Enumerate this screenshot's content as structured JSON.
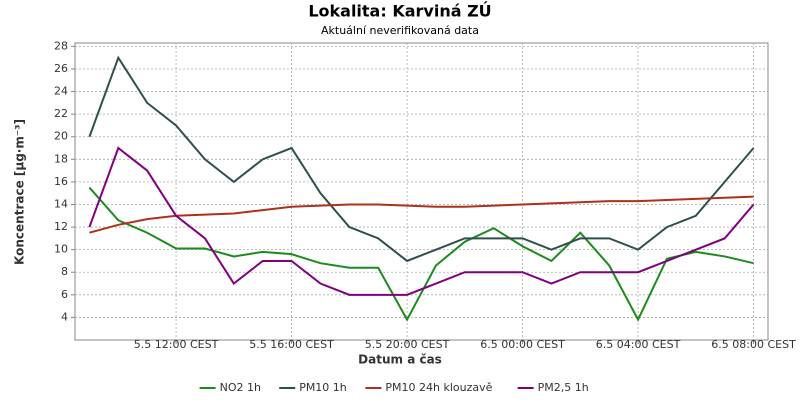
{
  "chart_data": {
    "type": "line",
    "title": "Lokalita: Karviná ZÚ",
    "subtitle": "Aktuální neverifikovaná data",
    "x_label": "Datum a čas",
    "y_label": "Koncentrace [µg·m⁻³]",
    "categories": [
      null,
      null,
      null,
      "5.5 12:00 CEST",
      null,
      null,
      null,
      "5.5 16:00 CEST",
      null,
      null,
      null,
      "5.5 20:00 CEST",
      null,
      null,
      null,
      "6.5 00:00 CEST",
      null,
      null,
      null,
      "6.5 04:00 CEST",
      null,
      null,
      null,
      "6.5 08:00 CEST"
    ],
    "ylim": [
      2,
      28.3
    ],
    "yticks": [
      4,
      6,
      8,
      10,
      12,
      14,
      16,
      18,
      20,
      22,
      24,
      26,
      28
    ],
    "grid": true,
    "legend": "bottom",
    "series": [
      {
        "name": "NO2 1h",
        "color": "#1b8c1b",
        "values": [
          15.5,
          12.6,
          11.5,
          10.1,
          10.1,
          9.4,
          9.8,
          9.6,
          8.8,
          8.4,
          8.4,
          3.8,
          8.6,
          10.7,
          11.9,
          10.3,
          9.0,
          11.5,
          8.6,
          3.8,
          9.2,
          9.8,
          9.4,
          8.8
        ]
      },
      {
        "name": "PM10 1h",
        "color": "#2f4f4f",
        "values": [
          20,
          27,
          23,
          21,
          18,
          16,
          18,
          19,
          15,
          12,
          11,
          9,
          10,
          11,
          11,
          11,
          10,
          11,
          11,
          10,
          12,
          13,
          16,
          19
        ]
      },
      {
        "name": "PM10 24h klouzavě",
        "color": "#b0301e",
        "values": [
          11.5,
          12.2,
          12.7,
          13.0,
          13.1,
          13.2,
          13.5,
          13.8,
          13.9,
          14.0,
          14.0,
          13.9,
          13.8,
          13.8,
          13.9,
          14.0,
          14.1,
          14.2,
          14.3,
          14.3,
          14.4,
          14.5,
          14.6,
          14.7
        ]
      },
      {
        "name": "PM2,5 1h",
        "color": "#800080",
        "values": [
          12,
          19,
          17,
          13,
          11,
          7,
          9,
          9,
          7,
          6,
          6,
          6,
          7,
          8,
          8,
          8,
          7,
          8,
          8,
          8,
          9,
          10,
          11,
          14
        ]
      }
    ]
  }
}
